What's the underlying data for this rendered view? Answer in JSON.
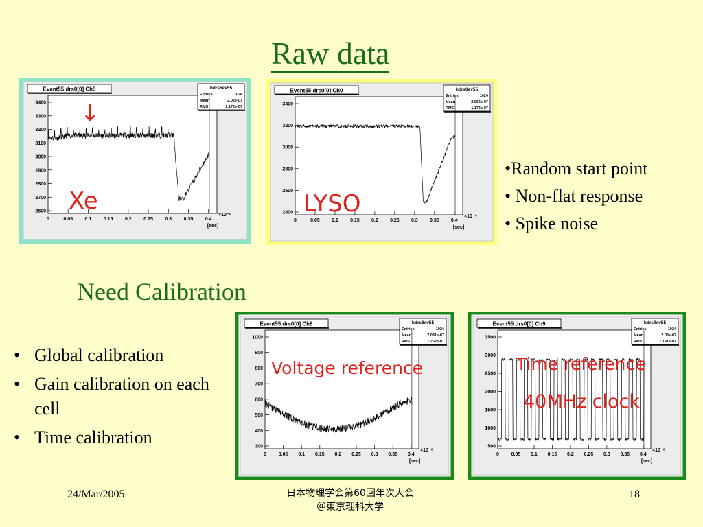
{
  "slide": {
    "title": "Raw data",
    "bullets_right": [
      "•Random start point",
      "• Non-flat response",
      "• Spike noise"
    ],
    "need_calibration": "Need Calibration",
    "bullets_left": [
      "Global calibration",
      "Gain calibration on each cell",
      "Time calibration"
    ],
    "bullet_symbol": "•",
    "footer": {
      "date": "24/Mar/2005",
      "conference_line1": "日本物理学会第60回年次大会",
      "conference_line2": "＠東京理科大学",
      "page_number": "18"
    }
  },
  "plots": [
    {
      "id": "xe",
      "box_title": "Event55 drs0[0] Ch5",
      "stats": {
        "name": "hdrs5ev55",
        "entries": "1024",
        "mean": "2.02e-07",
        "rms": "1.172e-07"
      },
      "overlay_label": "Xe",
      "yticks": [
        "3400",
        "3300",
        "3200",
        "3100",
        "3000",
        "2900",
        "2800",
        "2700",
        "2600"
      ],
      "xticks": [
        "0",
        "0.05",
        "0.1",
        "0.15",
        "0.2",
        "0.25",
        "0.3",
        "0.35",
        "0.4"
      ],
      "x_exponent": "×10⁻⁶",
      "x_unit": "[sec]"
    },
    {
      "id": "lyso",
      "box_title": "Event55 drs0[0] Ch0",
      "stats": {
        "name": "hdrs0ev55",
        "entries": "1024",
        "mean": "2.066e-07",
        "rms": "1.176e-07"
      },
      "overlay_label": "LYSO",
      "yticks": [
        "3400",
        "3200",
        "3000",
        "2800",
        "2600",
        "2400"
      ],
      "xticks": [
        "0",
        "0.05",
        "0.1",
        "0.15",
        "0.2",
        "0.25",
        "0.3",
        "0.35",
        "0.4"
      ],
      "x_exponent": "×10⁻⁶",
      "x_unit": "[sec]"
    },
    {
      "id": "voltage",
      "box_title": "Event55 drs0[0] Ch8",
      "stats": {
        "name": "hdrs8ev55",
        "entries": "1024",
        "mean": "2.031e-07",
        "rms": "1.252e-07"
      },
      "overlay_label": "Voltage reference",
      "yticks": [
        "1000",
        "900",
        "800",
        "700",
        "600",
        "500",
        "400",
        "300"
      ],
      "xticks": [
        "0",
        "0.05",
        "0.1",
        "0.15",
        "0.2",
        "0.25",
        "0.3",
        "0.35",
        "0.4"
      ],
      "x_exponent": "×10⁻⁶",
      "x_unit": "[sec]"
    },
    {
      "id": "time",
      "box_title": "Event55 drs0[0] Ch9",
      "stats": {
        "name": "hdrs9ev55",
        "entries": "1024",
        "mean": "2.03e-07",
        "rms": "1.191e-07"
      },
      "overlay_label": "Time reference",
      "overlay_label2": "40MHz clock",
      "yticks": [
        "3500",
        "3000",
        "2500",
        "2000",
        "1500",
        "1000",
        "500"
      ],
      "xticks": [
        "0",
        "0.05",
        "0.1",
        "0.15",
        "0.2",
        "0.25",
        "0.3",
        "0.35",
        "0.4"
      ],
      "x_exponent": "×10⁻⁶",
      "x_unit": "[sec]"
    }
  ],
  "colors": {
    "background": "#ffffcc",
    "title": "#1a6b1a",
    "label_red": "#e0201a",
    "frame_xe": "#8fe3c8",
    "frame_lyso": "#ffff80",
    "frame_green": "#1a8a1a"
  }
}
